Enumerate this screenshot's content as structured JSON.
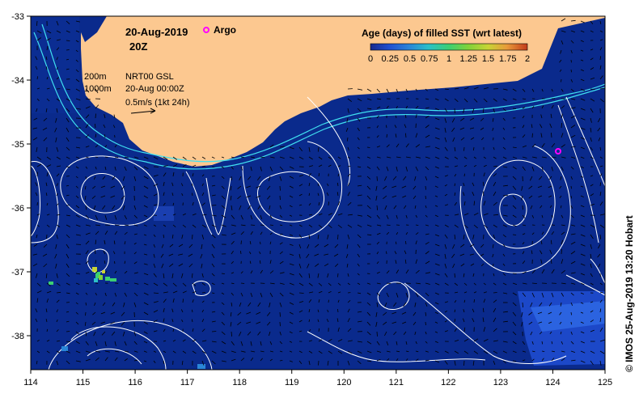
{
  "map": {
    "title_date": "20-Aug-2019",
    "title_hour": "20Z",
    "argo_label": "Argo",
    "product": "NRT00 GSL",
    "time": "20-Aug 00:00Z",
    "scale_label": "0.5m/s (1kt 24h)",
    "isobath_200": "200m",
    "isobath_1000": "1000m",
    "credit": "© IMOS 25-Aug-2019 13:20 Hobart",
    "colorbar": {
      "title": "Age (days) of filled SST (wrt latest)",
      "ticks": [
        "0",
        "0.25",
        "0.5",
        "0.75",
        "1",
        "1.25",
        "1.5",
        "1.75",
        "2"
      ],
      "colors": [
        "#1a2a8c",
        "#1f4fd0",
        "#2a86d8",
        "#2cc0c8",
        "#3ccf72",
        "#7fd23a",
        "#c8d435",
        "#e89a3a",
        "#c23a1a"
      ]
    },
    "x_ticks": [
      "114",
      "115",
      "116",
      "117",
      "118",
      "119",
      "120",
      "121",
      "122",
      "123",
      "124",
      "125"
    ],
    "y_ticks": [
      "-33",
      "-34",
      "-35",
      "-36",
      "-37",
      "-38"
    ],
    "colors": {
      "ocean": "#0a2a8c",
      "land": "#fcc890",
      "contour": "#ffffff",
      "isobath": "#40e0f0",
      "argo": "#ff00ff"
    }
  }
}
